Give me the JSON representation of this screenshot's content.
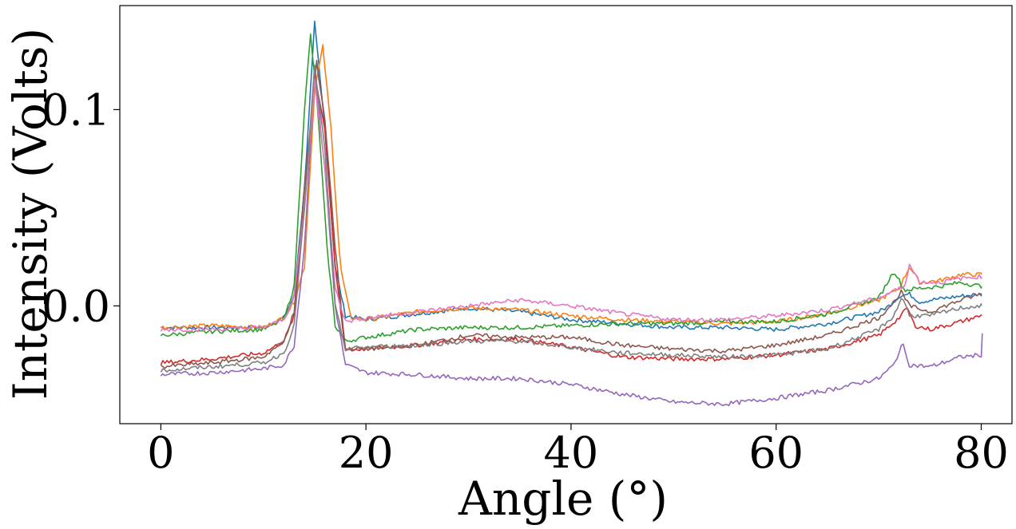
{
  "chart_data": {
    "type": "line",
    "xlabel": "Angle (°)",
    "ylabel": "Intensity (Volts)",
    "xlim": [
      -4,
      83
    ],
    "ylim": [
      -0.06,
      0.153
    ],
    "xticks": [
      {
        "value": 0,
        "label": "0"
      },
      {
        "value": 20,
        "label": "20"
      },
      {
        "value": 40,
        "label": "40"
      },
      {
        "value": 60,
        "label": "60"
      },
      {
        "value": 80,
        "label": "80"
      }
    ],
    "yticks": [
      {
        "value": 0.0,
        "label": "0.0"
      },
      {
        "value": 0.1,
        "label": "0.1"
      }
    ],
    "grid": false,
    "legend": "none",
    "series": [
      {
        "color": "#1f77b4",
        "points": [
          [
            0,
            -0.011
          ],
          [
            5,
            -0.011
          ],
          [
            10,
            -0.011
          ],
          [
            12,
            -0.006
          ],
          [
            13,
            0.005
          ],
          [
            14,
            0.06
          ],
          [
            15,
            0.144
          ],
          [
            16,
            0.09
          ],
          [
            17,
            0.02
          ],
          [
            18,
            -0.005
          ],
          [
            20,
            -0.007
          ],
          [
            25,
            -0.004
          ],
          [
            30,
            -0.001
          ],
          [
            35,
            -0.003
          ],
          [
            40,
            -0.007
          ],
          [
            45,
            -0.009
          ],
          [
            50,
            -0.011
          ],
          [
            55,
            -0.011
          ],
          [
            60,
            -0.012
          ],
          [
            65,
            -0.009
          ],
          [
            70,
            -0.003
          ],
          [
            71,
            0.0
          ],
          [
            72,
            0.005
          ],
          [
            73,
            0.006
          ],
          [
            74,
            0.002
          ],
          [
            75,
            0.003
          ],
          [
            78,
            0.005
          ],
          [
            80,
            0.006
          ]
        ]
      },
      {
        "color": "#ff7f0e",
        "points": [
          [
            0,
            -0.011
          ],
          [
            5,
            -0.01
          ],
          [
            10,
            -0.011
          ],
          [
            12,
            -0.006
          ],
          [
            13,
            0.002
          ],
          [
            14,
            0.02
          ],
          [
            15,
            0.11
          ],
          [
            15.8,
            0.132
          ],
          [
            16.6,
            0.09
          ],
          [
            17.5,
            0.02
          ],
          [
            18.5,
            -0.006
          ],
          [
            20,
            -0.007
          ],
          [
            25,
            -0.003
          ],
          [
            30,
            -0.001
          ],
          [
            35,
            -0.002
          ],
          [
            40,
            -0.005
          ],
          [
            45,
            -0.007
          ],
          [
            50,
            -0.008
          ],
          [
            55,
            -0.009
          ],
          [
            60,
            -0.008
          ],
          [
            65,
            -0.004
          ],
          [
            70,
            0.003
          ],
          [
            72,
            0.009
          ],
          [
            73,
            0.02
          ],
          [
            74,
            0.012
          ],
          [
            76,
            0.013
          ],
          [
            78,
            0.016
          ],
          [
            80,
            0.016
          ]
        ]
      },
      {
        "color": "#2ca02c",
        "points": [
          [
            0,
            -0.015
          ],
          [
            5,
            -0.013
          ],
          [
            10,
            -0.012
          ],
          [
            12,
            -0.007
          ],
          [
            13,
            0.01
          ],
          [
            14,
            0.1
          ],
          [
            14.6,
            0.138
          ],
          [
            15.3,
            0.1
          ],
          [
            16.2,
            0.03
          ],
          [
            17,
            -0.01
          ],
          [
            18,
            -0.018
          ],
          [
            20,
            -0.016
          ],
          [
            25,
            -0.012
          ],
          [
            30,
            -0.011
          ],
          [
            35,
            -0.011
          ],
          [
            40,
            -0.01
          ],
          [
            45,
            -0.009
          ],
          [
            50,
            -0.009
          ],
          [
            55,
            -0.008
          ],
          [
            60,
            -0.008
          ],
          [
            65,
            -0.004
          ],
          [
            70,
            0.004
          ],
          [
            71.5,
            0.018
          ],
          [
            72.5,
            0.008
          ],
          [
            74,
            0.009
          ],
          [
            76,
            0.01
          ],
          [
            78,
            0.012
          ],
          [
            80,
            0.01
          ]
        ]
      },
      {
        "color": "#d62728",
        "points": [
          [
            0,
            -0.029
          ],
          [
            5,
            -0.027
          ],
          [
            10,
            -0.024
          ],
          [
            12,
            -0.018
          ],
          [
            13,
            -0.005
          ],
          [
            14,
            0.05
          ],
          [
            15,
            0.118
          ],
          [
            16,
            0.09
          ],
          [
            17,
            0.02
          ],
          [
            18,
            -0.022
          ],
          [
            20,
            -0.022
          ],
          [
            25,
            -0.02
          ],
          [
            30,
            -0.017
          ],
          [
            35,
            -0.017
          ],
          [
            40,
            -0.021
          ],
          [
            45,
            -0.026
          ],
          [
            50,
            -0.027
          ],
          [
            55,
            -0.027
          ],
          [
            60,
            -0.025
          ],
          [
            65,
            -0.022
          ],
          [
            70,
            -0.015
          ],
          [
            72,
            -0.006
          ],
          [
            72.8,
            -0.001
          ],
          [
            73.5,
            -0.01
          ],
          [
            75,
            -0.012
          ],
          [
            78,
            -0.008
          ],
          [
            80,
            -0.005
          ]
        ]
      },
      {
        "color": "#9467bd",
        "points": [
          [
            0,
            -0.035
          ],
          [
            5,
            -0.034
          ],
          [
            10,
            -0.032
          ],
          [
            12,
            -0.03
          ],
          [
            13,
            -0.02
          ],
          [
            14,
            0.03
          ],
          [
            15,
            0.12
          ],
          [
            16,
            0.07
          ],
          [
            17,
            0.0
          ],
          [
            18,
            -0.03
          ],
          [
            20,
            -0.034
          ],
          [
            25,
            -0.035
          ],
          [
            30,
            -0.037
          ],
          [
            35,
            -0.037
          ],
          [
            40,
            -0.04
          ],
          [
            45,
            -0.045
          ],
          [
            50,
            -0.049
          ],
          [
            55,
            -0.05
          ],
          [
            60,
            -0.047
          ],
          [
            65,
            -0.043
          ],
          [
            70,
            -0.037
          ],
          [
            71.5,
            -0.03
          ],
          [
            72.3,
            -0.019
          ],
          [
            73,
            -0.03
          ],
          [
            75,
            -0.031
          ],
          [
            78,
            -0.026
          ],
          [
            80,
            -0.025
          ],
          [
            80.1,
            -0.014
          ]
        ]
      },
      {
        "color": "#8c564b",
        "points": [
          [
            0,
            -0.031
          ],
          [
            5,
            -0.029
          ],
          [
            10,
            -0.026
          ],
          [
            12,
            -0.018
          ],
          [
            13,
            -0.003
          ],
          [
            14,
            0.06
          ],
          [
            15.2,
            0.124
          ],
          [
            16,
            0.095
          ],
          [
            17,
            0.03
          ],
          [
            18,
            -0.022
          ],
          [
            20,
            -0.022
          ],
          [
            25,
            -0.02
          ],
          [
            30,
            -0.015
          ],
          [
            35,
            -0.016
          ],
          [
            40,
            -0.016
          ],
          [
            45,
            -0.02
          ],
          [
            50,
            -0.022
          ],
          [
            55,
            -0.023
          ],
          [
            60,
            -0.02
          ],
          [
            65,
            -0.015
          ],
          [
            70,
            -0.006
          ],
          [
            71.5,
            0.002
          ],
          [
            72.2,
            0.007
          ],
          [
            73,
            0.0
          ],
          [
            75,
            -0.003
          ],
          [
            78,
            0.003
          ],
          [
            80,
            0.006
          ]
        ]
      },
      {
        "color": "#e377c2",
        "points": [
          [
            0,
            -0.012
          ],
          [
            5,
            -0.012
          ],
          [
            10,
            -0.011
          ],
          [
            12,
            -0.007
          ],
          [
            13,
            0.005
          ],
          [
            14,
            0.05
          ],
          [
            15,
            0.115
          ],
          [
            16,
            0.07
          ],
          [
            17,
            0.01
          ],
          [
            18,
            -0.008
          ],
          [
            20,
            -0.006
          ],
          [
            25,
            -0.003
          ],
          [
            30,
            0.0
          ],
          [
            35,
            0.003
          ],
          [
            40,
            0.0
          ],
          [
            45,
            -0.004
          ],
          [
            50,
            -0.007
          ],
          [
            55,
            -0.007
          ],
          [
            60,
            -0.005
          ],
          [
            65,
            -0.002
          ],
          [
            70,
            0.004
          ],
          [
            72.5,
            0.01
          ],
          [
            73,
            0.021
          ],
          [
            74,
            0.012
          ],
          [
            76,
            0.012
          ],
          [
            78,
            0.014
          ],
          [
            80,
            0.015
          ]
        ]
      },
      {
        "color": "#7f7f7f",
        "points": [
          [
            0,
            -0.033
          ],
          [
            5,
            -0.031
          ],
          [
            10,
            -0.029
          ],
          [
            12,
            -0.024
          ],
          [
            13,
            -0.01
          ],
          [
            14,
            0.05
          ],
          [
            15,
            0.122
          ],
          [
            16,
            0.08
          ],
          [
            17,
            0.0
          ],
          [
            18,
            -0.022
          ],
          [
            20,
            -0.021
          ],
          [
            25,
            -0.02
          ],
          [
            30,
            -0.018
          ],
          [
            35,
            -0.018
          ],
          [
            40,
            -0.021
          ],
          [
            45,
            -0.024
          ],
          [
            50,
            -0.025
          ],
          [
            55,
            -0.026
          ],
          [
            60,
            -0.025
          ],
          [
            65,
            -0.022
          ],
          [
            70,
            -0.012
          ],
          [
            71.5,
            -0.005
          ],
          [
            72.3,
            0.005
          ],
          [
            73,
            -0.005
          ],
          [
            75,
            -0.005
          ],
          [
            78,
            -0.001
          ],
          [
            80,
            0.0
          ]
        ]
      }
    ]
  }
}
